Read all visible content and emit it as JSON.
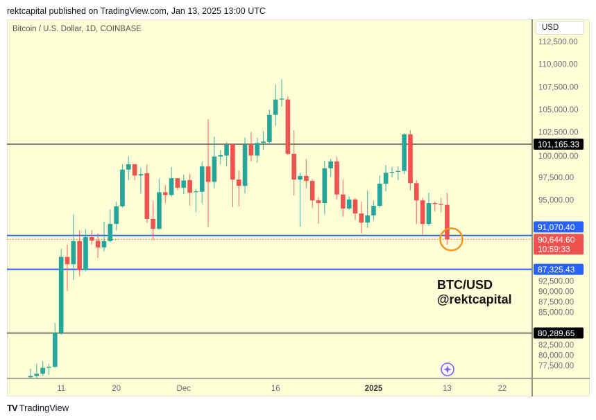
{
  "header": {
    "published": "rektcapital published on TradingView.com, Jan 13, 2025 13:00 UTC"
  },
  "chart": {
    "symbol": "Bitcoin / U.S. Dollar, 1D, COINBASE",
    "currency_button": "USD"
  },
  "annotation": {
    "line1": "BTC/USD",
    "line2": "@rektcapital"
  },
  "footer": {
    "logo_text": "TradingView"
  },
  "colors": {
    "up": "#26a69a",
    "down": "#ef5350",
    "level_blue": "#2962ff",
    "level_black": "#6e6e5e",
    "background": "#fefed7",
    "highlight_circle": "#f7931a",
    "icon": "#7b61ff"
  },
  "chart_data": {
    "type": "candlestick",
    "title": "Bitcoin / U.S. Dollar, 1D, COINBASE",
    "ylim": [
      75000,
      113500
    ],
    "y_ticks": [
      "112,500.00",
      "110,000.00",
      "107,500.00",
      "105,000.00",
      "102,500.00",
      "100,000.00",
      "97,500.00",
      "95,000.00",
      "92,500.00",
      "90,000.00",
      "87,500.00",
      "85,000.00",
      "82,500.00",
      "80,000.00",
      "77,500.00"
    ],
    "y_tick_values": [
      112500,
      110000,
      107500,
      105000,
      102500,
      100000,
      97500,
      95000,
      92500,
      90000,
      87500,
      85000,
      82500,
      80000,
      77500
    ],
    "x_ticks": [
      {
        "label": "11",
        "date": "2024-11-11"
      },
      {
        "label": "20",
        "date": "2024-11-20"
      },
      {
        "label": "Dec",
        "date": "2024-12-01"
      },
      {
        "label": "16",
        "date": "2024-12-16"
      },
      {
        "label": "2025",
        "date": "2025-01-01",
        "bold": true
      },
      {
        "label": "13",
        "date": "2025-01-13"
      },
      {
        "label": "22",
        "date": "2025-01-22"
      }
    ],
    "first_date": "2024-11-06",
    "candles_ohlc": [
      [
        75400,
        76350,
        75000,
        75550
      ],
      [
        75550,
        76900,
        75000,
        75800
      ],
      [
        75800,
        77200,
        75550,
        76450
      ],
      [
        76450,
        76900,
        75650,
        76550
      ],
      [
        76550,
        81400,
        76450,
        80300
      ],
      [
        80300,
        89600,
        80100,
        88700
      ],
      [
        88700,
        90050,
        84950,
        87900
      ],
      [
        87900,
        93400,
        86150,
        90450
      ],
      [
        90450,
        91650,
        86600,
        87250
      ],
      [
        87250,
        91800,
        87100,
        90900
      ],
      [
        90900,
        91650,
        90050,
        90500
      ],
      [
        90500,
        91300,
        88600,
        89750
      ],
      [
        89750,
        92600,
        89300,
        90450
      ],
      [
        90450,
        93950,
        90300,
        92350
      ],
      [
        92350,
        94800,
        91600,
        94300
      ],
      [
        94300,
        98950,
        94150,
        98350
      ],
      [
        98350,
        99800,
        97200,
        98950
      ],
      [
        98950,
        98950,
        97200,
        97700
      ],
      [
        97700,
        98550,
        95700,
        97850
      ],
      [
        97950,
        98950,
        92450,
        92900
      ],
      [
        92900,
        94900,
        90600,
        91800
      ],
      [
        91800,
        97350,
        91700,
        95850
      ],
      [
        95850,
        96650,
        94650,
        95550
      ],
      [
        95550,
        98650,
        95350,
        97400
      ],
      [
        97400,
        97400,
        96100,
        96350
      ],
      [
        96350,
        97800,
        95650,
        97150
      ],
      [
        97200,
        97900,
        94350,
        95800
      ],
      [
        95900,
        96200,
        93600,
        95950
      ],
      [
        95900,
        99200,
        94600,
        98700
      ],
      [
        98700,
        103900,
        92000,
        97000
      ],
      [
        97000,
        102000,
        96300,
        99800
      ],
      [
        99800,
        100500,
        98950,
        99950
      ],
      [
        99900,
        101400,
        98700,
        101100
      ],
      [
        101100,
        101200,
        94200,
        97250
      ],
      [
        97250,
        98250,
        94300,
        96550
      ],
      [
        96550,
        101900,
        95700,
        101100
      ],
      [
        101100,
        102500,
        99250,
        99900
      ],
      [
        99900,
        101850,
        99150,
        101300
      ],
      [
        101300,
        102600,
        100550,
        101450
      ],
      [
        101400,
        105000,
        101200,
        104400
      ],
      [
        104400,
        107750,
        103200,
        106100
      ],
      [
        106100,
        108350,
        105300,
        106200
      ],
      [
        106100,
        106450,
        99950,
        100100
      ],
      [
        100100,
        102700,
        95500,
        97250
      ],
      [
        97250,
        98000,
        92050,
        97650
      ],
      [
        97650,
        99500,
        96300,
        97100
      ],
      [
        97100,
        97300,
        94100,
        94950
      ],
      [
        94950,
        95300,
        92350,
        94650
      ],
      [
        94650,
        99300,
        93400,
        98500
      ],
      [
        98500,
        99550,
        97550,
        99250
      ],
      [
        99250,
        99800,
        95050,
        95600
      ],
      [
        95600,
        97250,
        93150,
        94050
      ],
      [
        94050,
        95400,
        93900,
        95050
      ],
      [
        95050,
        95200,
        92800,
        93500
      ],
      [
        93500,
        94800,
        91300,
        92500
      ],
      [
        92500,
        96050,
        91900,
        93300
      ],
      [
        93300,
        94900,
        92750,
        94350
      ],
      [
        94350,
        97700,
        94150,
        96800
      ],
      [
        96800,
        98850,
        95950,
        98000
      ],
      [
        98000,
        98650,
        97500,
        98100
      ],
      [
        98100,
        98700,
        97200,
        98200
      ],
      [
        98200,
        102400,
        97850,
        102250
      ],
      [
        102250,
        102700,
        96050,
        96850
      ],
      [
        96850,
        97200,
        92350,
        94950
      ],
      [
        94950,
        95250,
        91150,
        92350
      ],
      [
        92350,
        95800,
        92150,
        94650
      ],
      [
        94650,
        94850,
        93750,
        94550
      ],
      [
        94550,
        95250,
        93600,
        94450
      ],
      [
        94450,
        95800,
        90050,
        90644.6
      ]
    ],
    "levels": [
      {
        "value": 101165.33,
        "label": "101,165.33",
        "color": "black"
      },
      {
        "value": 91070.4,
        "label": "91,070.40",
        "color": "blue"
      },
      {
        "value": 87325.43,
        "label": "87,325.43",
        "color": "blue"
      },
      {
        "value": 80289.65,
        "label": "80,289.65",
        "color": "black"
      }
    ],
    "last_price": {
      "value": 90644.6,
      "label": "90,644.60",
      "countdown": "10:59:33"
    }
  }
}
